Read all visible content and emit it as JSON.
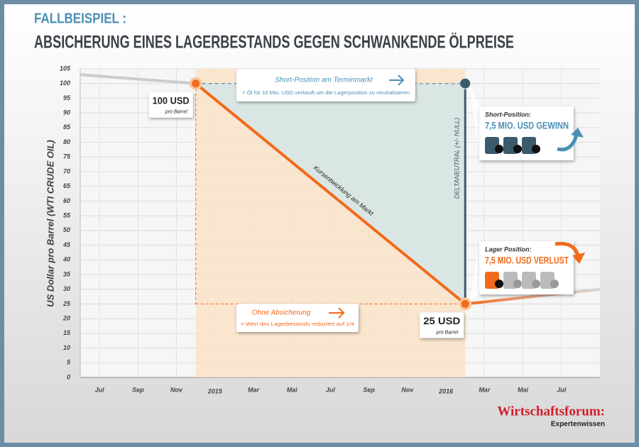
{
  "chart_data": {
    "type": "line",
    "title": "FALLBEISPIEL :",
    "subtitle": "ABSICHERUNG EINES LAGERBESTANDS GEGEN SCHWANKENDE ÖLPREISE",
    "y_label": "US Dollar pro Barrel (WTI CRUDE OIL)",
    "ylim": [
      0,
      105
    ],
    "yticks": [
      0,
      5,
      10,
      15,
      20,
      25,
      30,
      35,
      40,
      45,
      50,
      55,
      60,
      65,
      70,
      75,
      80,
      85,
      90,
      95,
      100,
      105
    ],
    "xlim": [
      "2014-06",
      "2016-09"
    ],
    "xticks": [
      {
        "value": "2014-07",
        "label": "Jul"
      },
      {
        "value": "2014-09",
        "label": "Sep"
      },
      {
        "value": "2014-11",
        "label": "Nov"
      },
      {
        "value": "2015-01",
        "label": "2015"
      },
      {
        "value": "2015-03",
        "label": "Mar"
      },
      {
        "value": "2015-05",
        "label": "Mai"
      },
      {
        "value": "2015-07",
        "label": "Jul"
      },
      {
        "value": "2015-09",
        "label": "Sep"
      },
      {
        "value": "2015-11",
        "label": "Nov"
      },
      {
        "value": "2016-01",
        "label": "2016"
      },
      {
        "value": "2016-03",
        "label": "Mar"
      },
      {
        "value": "2016-05",
        "label": "Mai"
      },
      {
        "value": "2016-07",
        "label": "Jul"
      }
    ],
    "grid": true,
    "series": [
      {
        "name": "Kursentwicklung am Markt",
        "color": "#f26a1b",
        "x": [
          "2014-06",
          "2014-12",
          "2016-02",
          "2016-09"
        ],
        "values": [
          103,
          100,
          25,
          30
        ]
      }
    ],
    "start_label": {
      "text": "100 USD",
      "sub": "pro Barrel"
    },
    "end_label": {
      "text": "25 USD",
      "sub": "pro Barrel"
    },
    "hedge": {
      "title": "Short-Position am Terminmarkt",
      "text": "= Öl für 10 Mio. USD verkauft um die Lagerposition zu neutralisieren"
    },
    "unhedged": {
      "title": "Ohne Absicherung",
      "text": "= Wert des Lagerbestands reduziert auf 1/4"
    },
    "delta_label": "DELTANEUTRAL (+/- NULL)",
    "panels": [
      {
        "label": "Short-Position:",
        "text": "7,5 MIO. USD GEWINN"
      },
      {
        "label": "Lager Position:",
        "text": "7,5 MIO. USD VERLUST"
      }
    ],
    "logo": {
      "name": "Wirtschaftsforum:",
      "tagline": "Expertenwissen"
    }
  }
}
